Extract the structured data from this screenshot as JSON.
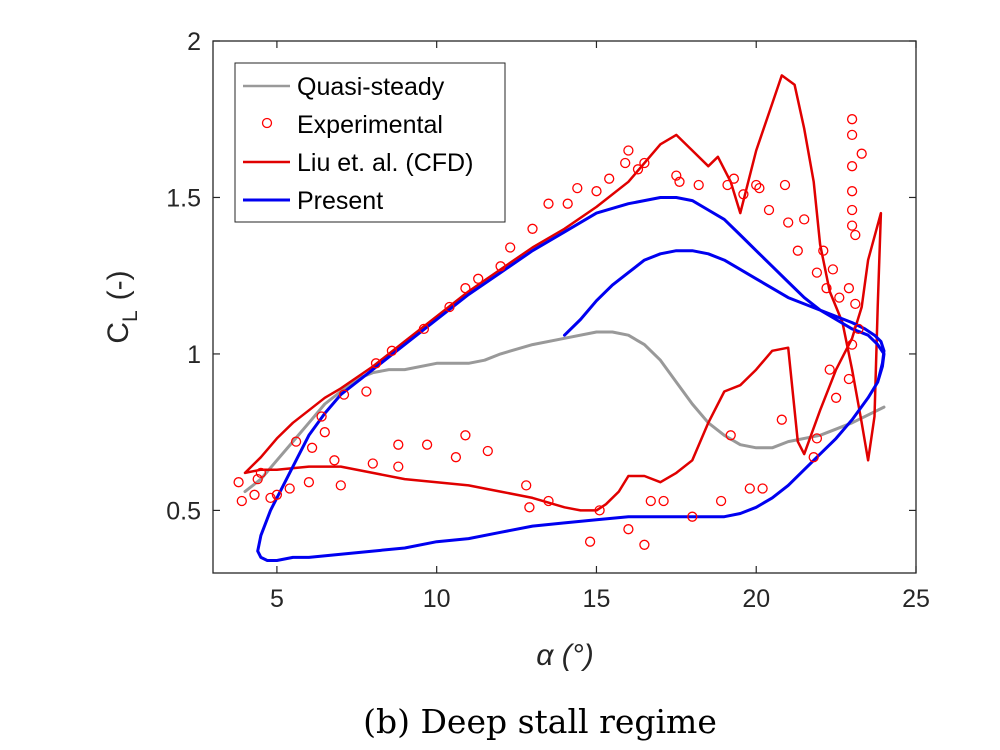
{
  "chart_data": {
    "type": "line",
    "title": "",
    "caption": "(b) Deep stall regime",
    "xlabel": "α (°)",
    "ylabel_main": "C",
    "ylabel_sub": "L",
    "ylabel_unit": "(-)",
    "xlim": [
      3,
      25
    ],
    "ylim": [
      0.3,
      2.0
    ],
    "xticks": [
      5,
      10,
      15,
      20,
      25
    ],
    "yticks": [
      0.5,
      1,
      1.5,
      2
    ],
    "xtick_labels": [
      "5",
      "10",
      "15",
      "20",
      "25"
    ],
    "ytick_labels": [
      "0.5",
      "1",
      "1.5",
      "2"
    ],
    "legend_position": "top-left",
    "legend": [
      "Quasi-steady",
      "Experimental",
      "Liu et. al. (CFD)",
      "Present"
    ],
    "colors": {
      "quasi": "#999999",
      "experimental": "#ff0000",
      "cfd": "#e00000",
      "present": "#0000f0",
      "axis": "#262626"
    },
    "series": [
      {
        "name": "Quasi-steady",
        "style": "line",
        "x": [
          4.0,
          4.5,
          5.0,
          5.5,
          6.0,
          6.5,
          7.0,
          7.5,
          8.0,
          8.5,
          9.0,
          10.0,
          11.0,
          11.5,
          12.0,
          13.0,
          14.0,
          15.0,
          15.5,
          16.0,
          16.5,
          17.0,
          17.5,
          18.0,
          18.5,
          19.0,
          19.5,
          20.0,
          20.5,
          21.0,
          22.0,
          23.0,
          24.0
        ],
        "y": [
          0.56,
          0.6,
          0.66,
          0.72,
          0.78,
          0.84,
          0.88,
          0.92,
          0.94,
          0.95,
          0.95,
          0.97,
          0.97,
          0.98,
          1.0,
          1.03,
          1.05,
          1.07,
          1.07,
          1.06,
          1.03,
          0.98,
          0.91,
          0.84,
          0.78,
          0.74,
          0.71,
          0.7,
          0.7,
          0.72,
          0.74,
          0.78,
          0.83
        ]
      },
      {
        "name": "Experimental",
        "style": "markers",
        "x": [
          3.8,
          3.9,
          4.3,
          4.4,
          4.5,
          4.8,
          5.0,
          5.4,
          5.6,
          6.0,
          6.1,
          6.4,
          6.5,
          6.8,
          7.0,
          7.1,
          7.8,
          8.0,
          8.1,
          8.6,
          8.8,
          8.8,
          9.6,
          9.7,
          10.4,
          10.6,
          10.9,
          10.9,
          11.3,
          11.6,
          12.0,
          12.3,
          12.8,
          12.9,
          13.0,
          13.5,
          13.5,
          14.1,
          14.4,
          14.8,
          15.0,
          15.1,
          15.4,
          15.9,
          16.0,
          16.0,
          16.3,
          16.5,
          16.5,
          16.7,
          17.1,
          17.5,
          17.6,
          18.0,
          18.2,
          18.9,
          19.1,
          19.2,
          19.3,
          19.6,
          19.8,
          20.0,
          20.1,
          20.2,
          20.4,
          20.8,
          20.9,
          21.0,
          21.3,
          21.5,
          21.8,
          21.9,
          21.9,
          22.1,
          22.2,
          22.3,
          22.4,
          22.5,
          22.6,
          22.9,
          22.9,
          23.0,
          23.0,
          23.0,
          23.0,
          23.0,
          23.0,
          23.0,
          23.1,
          23.1,
          23.2,
          23.3
        ],
        "y": [
          0.59,
          0.53,
          0.55,
          0.6,
          0.62,
          0.54,
          0.55,
          0.57,
          0.72,
          0.59,
          0.7,
          0.8,
          0.75,
          0.66,
          0.58,
          0.87,
          0.88,
          0.65,
          0.97,
          1.01,
          0.64,
          0.71,
          1.08,
          0.71,
          1.15,
          0.67,
          0.74,
          1.21,
          1.24,
          0.69,
          1.28,
          1.34,
          0.58,
          0.51,
          1.4,
          1.48,
          0.53,
          1.48,
          1.53,
          0.4,
          1.52,
          0.5,
          1.56,
          1.61,
          0.44,
          1.65,
          1.59,
          1.61,
          0.39,
          0.53,
          0.53,
          1.57,
          1.55,
          0.48,
          1.54,
          0.53,
          1.54,
          0.74,
          1.56,
          1.51,
          0.57,
          1.54,
          1.53,
          0.57,
          1.46,
          0.79,
          1.54,
          1.42,
          1.33,
          1.43,
          0.67,
          1.26,
          0.73,
          1.33,
          1.21,
          0.95,
          1.27,
          0.86,
          1.18,
          0.92,
          1.21,
          1.75,
          1.7,
          1.6,
          1.52,
          1.46,
          1.03,
          1.41,
          1.16,
          1.38,
          1.08,
          1.64
        ]
      },
      {
        "name": "Liu et. al. (CFD)",
        "style": "line",
        "x": [
          4.0,
          4.5,
          5.0,
          5.5,
          6.0,
          6.5,
          7.0,
          8.0,
          9.0,
          10.0,
          11.0,
          12.0,
          13.0,
          14.0,
          15.0,
          16.0,
          17.0,
          17.5,
          18.0,
          18.5,
          18.8,
          19.2,
          19.5,
          20.0,
          20.5,
          20.8,
          21.2,
          21.5,
          21.8,
          22.0,
          22.3,
          22.5,
          22.7,
          23.0,
          23.3,
          23.5,
          23.7,
          23.8,
          23.9,
          23.5,
          23.3,
          23.0,
          22.5,
          22.0,
          21.5,
          21.3,
          21.0,
          20.5,
          20.0,
          19.5,
          19.0,
          18.5,
          18.0,
          17.5,
          17.0,
          16.5,
          16.0,
          15.7,
          15.3,
          15.0,
          14.5,
          14.0,
          13.0,
          12.0,
          11.0,
          10.0,
          9.0,
          8.0,
          7.0,
          6.0,
          5.0,
          4.5,
          4.0
        ],
        "y": [
          0.62,
          0.67,
          0.73,
          0.78,
          0.82,
          0.86,
          0.89,
          0.96,
          1.04,
          1.12,
          1.2,
          1.27,
          1.34,
          1.4,
          1.47,
          1.55,
          1.67,
          1.7,
          1.65,
          1.6,
          1.63,
          1.55,
          1.45,
          1.65,
          1.8,
          1.89,
          1.86,
          1.72,
          1.55,
          1.35,
          1.2,
          1.15,
          1.1,
          0.95,
          0.78,
          0.66,
          0.8,
          1.15,
          1.45,
          1.3,
          1.15,
          1.05,
          0.95,
          0.82,
          0.68,
          0.72,
          1.02,
          1.01,
          0.95,
          0.9,
          0.88,
          0.78,
          0.66,
          0.62,
          0.59,
          0.61,
          0.61,
          0.56,
          0.52,
          0.5,
          0.5,
          0.51,
          0.54,
          0.56,
          0.58,
          0.59,
          0.6,
          0.62,
          0.64,
          0.64,
          0.63,
          0.63,
          0.62
        ]
      },
      {
        "name": "Present",
        "style": "line",
        "x": [
          14.0,
          14.5,
          15.0,
          15.5,
          16.0,
          16.5,
          17.0,
          17.5,
          18.0,
          18.5,
          19.0,
          19.5,
          20.0,
          20.5,
          21.0,
          21.5,
          22.0,
          22.5,
          23.0,
          23.4,
          23.7,
          23.9,
          24.0,
          23.95,
          23.8,
          23.5,
          23.0,
          22.5,
          22.0,
          21.5,
          21.0,
          20.5,
          20.0,
          19.5,
          19.0,
          18.5,
          18.0,
          17.5,
          17.0,
          16.5,
          16.0,
          15.0,
          14.0,
          13.0,
          12.0,
          11.0,
          10.0,
          9.0,
          8.0,
          7.0,
          6.0,
          5.5,
          5.0,
          4.7,
          4.5,
          4.4,
          4.5,
          4.8,
          5.2,
          5.6,
          6.0,
          6.5,
          7.0,
          7.5,
          8.0,
          9.0,
          10.0,
          11.0,
          12.0,
          13.0,
          14.0,
          15.0,
          16.0,
          17.0,
          17.5,
          18.0,
          18.5,
          19.0,
          19.5,
          20.0,
          20.5,
          21.0,
          21.5,
          22.0,
          22.5,
          23.0,
          23.5,
          23.8,
          24.0,
          23.95,
          23.8
        ],
        "y": [
          1.06,
          1.11,
          1.17,
          1.22,
          1.26,
          1.3,
          1.32,
          1.33,
          1.33,
          1.32,
          1.3,
          1.27,
          1.24,
          1.21,
          1.18,
          1.16,
          1.14,
          1.12,
          1.1,
          1.08,
          1.06,
          1.04,
          1.01,
          0.97,
          0.91,
          0.86,
          0.79,
          0.73,
          0.68,
          0.63,
          0.58,
          0.54,
          0.51,
          0.49,
          0.48,
          0.48,
          0.48,
          0.48,
          0.48,
          0.48,
          0.48,
          0.47,
          0.46,
          0.45,
          0.43,
          0.41,
          0.4,
          0.38,
          0.37,
          0.36,
          0.35,
          0.35,
          0.34,
          0.34,
          0.35,
          0.37,
          0.42,
          0.5,
          0.58,
          0.66,
          0.74,
          0.81,
          0.87,
          0.91,
          0.95,
          1.03,
          1.11,
          1.19,
          1.26,
          1.33,
          1.39,
          1.45,
          1.48,
          1.5,
          1.5,
          1.49,
          1.46,
          1.43,
          1.38,
          1.33,
          1.28,
          1.23,
          1.18,
          1.14,
          1.11,
          1.08,
          1.06,
          1.03,
          1.0,
          0.96,
          0.91
        ]
      }
    ]
  }
}
